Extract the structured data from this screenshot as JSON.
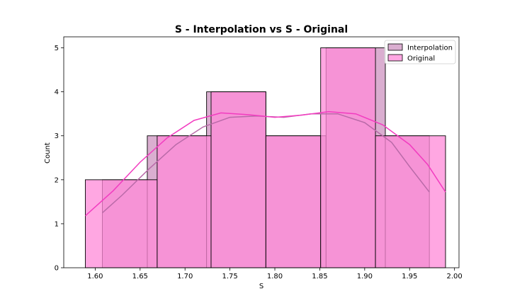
{
  "chart_data": {
    "type": "histogram",
    "title": "S - Interpolation vs S - Original",
    "xlabel": "S",
    "ylabel": "Count",
    "xlim": [
      1.565,
      2.005
    ],
    "ylim": [
      0,
      5.25
    ],
    "xticks": [
      1.6,
      1.65,
      1.7,
      1.75,
      1.8,
      1.85,
      1.9,
      1.95,
      2.0
    ],
    "xtick_labels": [
      "1.60",
      "1.65",
      "1.70",
      "1.75",
      "1.80",
      "1.85",
      "1.90",
      "1.95",
      "2.00"
    ],
    "yticks": [
      0,
      1,
      2,
      3,
      4,
      5
    ],
    "ytick_labels": [
      "0",
      "1",
      "2",
      "3",
      "4",
      "5"
    ],
    "legend_position": "top-right",
    "series": [
      {
        "name": "Interpolation",
        "color": "#d4a0c8",
        "kde_color": "#b96aa8",
        "bins": [
          {
            "x0": 1.608,
            "x1": 1.658,
            "count": 2
          },
          {
            "x0": 1.658,
            "x1": 1.724,
            "count": 3
          },
          {
            "x0": 1.724,
            "x1": 1.79,
            "count": 4
          },
          {
            "x0": 1.79,
            "x1": 1.857,
            "count": 3
          },
          {
            "x0": 1.857,
            "x1": 1.923,
            "count": 5
          },
          {
            "x0": 1.923,
            "x1": 1.972,
            "count": 3
          }
        ],
        "kde": [
          [
            1.608,
            1.25
          ],
          [
            1.63,
            1.65
          ],
          [
            1.66,
            2.25
          ],
          [
            1.69,
            2.8
          ],
          [
            1.72,
            3.2
          ],
          [
            1.75,
            3.42
          ],
          [
            1.78,
            3.45
          ],
          [
            1.81,
            3.42
          ],
          [
            1.84,
            3.5
          ],
          [
            1.87,
            3.5
          ],
          [
            1.9,
            3.3
          ],
          [
            1.93,
            2.85
          ],
          [
            1.95,
            2.3
          ],
          [
            1.972,
            1.72
          ]
        ]
      },
      {
        "name": "Original",
        "color": "#ff8ad8",
        "kde_color": "#f23cc0",
        "bins": [
          {
            "x0": 1.589,
            "x1": 1.669,
            "count": 2
          },
          {
            "x0": 1.669,
            "x1": 1.729,
            "count": 3
          },
          {
            "x0": 1.729,
            "x1": 1.79,
            "count": 4
          },
          {
            "x0": 1.79,
            "x1": 1.851,
            "count": 3
          },
          {
            "x0": 1.851,
            "x1": 1.912,
            "count": 5
          },
          {
            "x0": 1.912,
            "x1": 1.99,
            "count": 3
          }
        ],
        "kde": [
          [
            1.589,
            1.18
          ],
          [
            1.62,
            1.75
          ],
          [
            1.65,
            2.4
          ],
          [
            1.68,
            2.95
          ],
          [
            1.71,
            3.35
          ],
          [
            1.74,
            3.52
          ],
          [
            1.77,
            3.48
          ],
          [
            1.8,
            3.42
          ],
          [
            1.83,
            3.47
          ],
          [
            1.86,
            3.55
          ],
          [
            1.89,
            3.5
          ],
          [
            1.92,
            3.25
          ],
          [
            1.95,
            2.8
          ],
          [
            1.97,
            2.35
          ],
          [
            1.99,
            1.72
          ]
        ]
      }
    ]
  }
}
